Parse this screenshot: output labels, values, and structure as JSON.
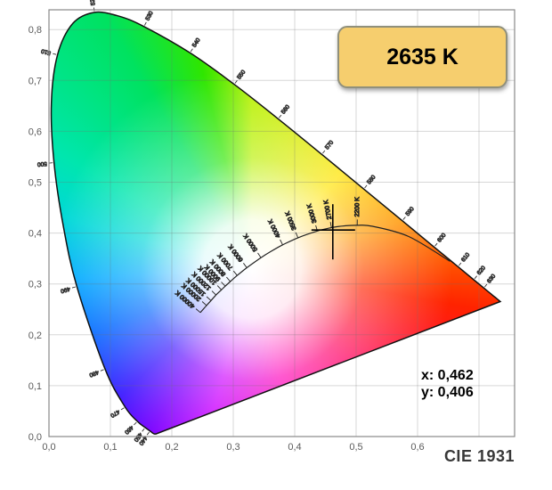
{
  "badge": {
    "label": "2635 K"
  },
  "readout": {
    "x": "x: 0,462",
    "y": "y: 0,406"
  },
  "footer_label": "CIE 1931",
  "chart_data": {
    "type": "scatter",
    "subtype": "cie-1931-xy-chromaticity-diagram",
    "title": "CIE 1931",
    "xlabel": "x",
    "ylabel": "y",
    "xlim": [
      0,
      0.758
    ],
    "ylim": [
      0,
      0.838
    ],
    "grid": true,
    "x_ticks": [
      "0,0",
      "0,1",
      "0,2",
      "0,3",
      "0,4",
      "0,5",
      "0,6"
    ],
    "y_ticks": [
      "0,0",
      "0,1",
      "0,2",
      "0,3",
      "0,4",
      "0,5",
      "0,6",
      "0,7",
      "0,8"
    ],
    "marked_point": {
      "x": 0.462,
      "y": 0.406,
      "cct_label": "2635 K"
    },
    "spectral_locus": [
      [
        380,
        0.1741,
        0.005
      ],
      [
        420,
        0.1714,
        0.0051
      ],
      [
        430,
        0.1689,
        0.0069
      ],
      [
        440,
        0.1644,
        0.0109
      ],
      [
        450,
        0.1566,
        0.0177
      ],
      [
        460,
        0.144,
        0.0297
      ],
      [
        470,
        0.1241,
        0.0578
      ],
      [
        480,
        0.0913,
        0.1327
      ],
      [
        490,
        0.0454,
        0.295
      ],
      [
        495,
        0.0235,
        0.4127
      ],
      [
        500,
        0.0082,
        0.5384
      ],
      [
        505,
        0.0039,
        0.6548
      ],
      [
        510,
        0.0139,
        0.7502
      ],
      [
        515,
        0.0389,
        0.812
      ],
      [
        520,
        0.0743,
        0.8338
      ],
      [
        525,
        0.1142,
        0.8262
      ],
      [
        530,
        0.1547,
        0.8059
      ],
      [
        540,
        0.2296,
        0.7543
      ],
      [
        550,
        0.3016,
        0.6923
      ],
      [
        560,
        0.3731,
        0.6245
      ],
      [
        570,
        0.4441,
        0.5547
      ],
      [
        580,
        0.5125,
        0.4866
      ],
      [
        590,
        0.5752,
        0.4242
      ],
      [
        600,
        0.627,
        0.3725
      ],
      [
        610,
        0.6658,
        0.334
      ],
      [
        620,
        0.6915,
        0.3083
      ],
      [
        630,
        0.7079,
        0.292
      ],
      [
        640,
        0.719,
        0.2809
      ],
      [
        650,
        0.726,
        0.274
      ],
      [
        700,
        0.7347,
        0.2653
      ]
    ],
    "wavelength_labels": [
      440,
      450,
      460,
      470,
      480,
      490,
      500,
      510,
      520,
      530,
      540,
      550,
      560,
      570,
      580,
      590,
      600,
      610,
      620,
      630
    ],
    "planckian_locus": [
      [
        40000,
        0.2464,
        0.2437
      ],
      [
        20000,
        0.2565,
        0.2577
      ],
      [
        15000,
        0.2637,
        0.2673
      ],
      [
        12000,
        0.2719,
        0.2782
      ],
      [
        10000,
        0.2807,
        0.2884
      ],
      [
        9000,
        0.2869,
        0.2956
      ],
      [
        8000,
        0.2952,
        0.3048
      ],
      [
        7000,
        0.3064,
        0.3166
      ],
      [
        6000,
        0.3221,
        0.3318
      ],
      [
        5000,
        0.3451,
        0.3516
      ],
      [
        4500,
        0.3608,
        0.3636
      ],
      [
        4000,
        0.3805,
        0.3768
      ],
      [
        3500,
        0.4053,
        0.3907
      ],
      [
        3000,
        0.4369,
        0.4041
      ],
      [
        2700,
        0.4599,
        0.4106
      ],
      [
        2500,
        0.477,
        0.4137
      ],
      [
        2200,
        0.5018,
        0.4153
      ],
      [
        2000,
        0.5267,
        0.4133
      ],
      [
        1500,
        0.5857,
        0.3931
      ],
      [
        1000,
        0.6528,
        0.3444
      ]
    ],
    "cct_labels": [
      40000,
      20000,
      15000,
      12000,
      10000,
      9000,
      8000,
      7000,
      6000,
      5000,
      4000,
      3500,
      3000,
      2700,
      2200
    ],
    "cct_label_suffix": " K",
    "colors": {
      "outline": "#111111",
      "planckian": "#222222",
      "grid": "rgba(110,110,110,0.28)",
      "frame": "#888888",
      "axis_text": "#5a5a5a",
      "label_text": "#333333",
      "crosshair": "#000000",
      "badge_fill": "#f6ce6e",
      "badge_border": "#90907c",
      "white_center": "#ffffff",
      "wheel": [
        [
          0,
          "#b8f000"
        ],
        [
          43,
          "#ffe400"
        ],
        [
          72,
          "#ff9600"
        ],
        [
          100,
          "#ff2300"
        ],
        [
          135,
          "#ff0066"
        ],
        [
          165,
          "#ff00b9"
        ],
        [
          195,
          "#cc00ff"
        ],
        [
          212,
          "#7a00ff"
        ],
        [
          226,
          "#3714ff"
        ],
        [
          248,
          "#0066ff"
        ],
        [
          267,
          "#00aaff"
        ],
        [
          285,
          "#00d8d8"
        ],
        [
          301,
          "#00e6ae"
        ],
        [
          330,
          "#00e25f"
        ],
        [
          346,
          "#2fe600"
        ],
        [
          360,
          "#b8f000"
        ]
      ]
    }
  }
}
